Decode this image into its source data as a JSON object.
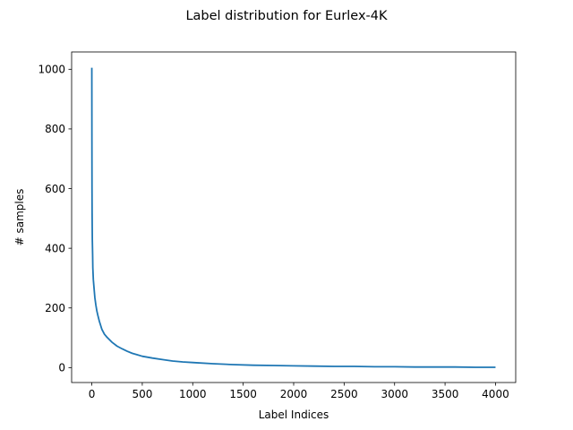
{
  "chart_data": {
    "type": "line",
    "title": "Label distribution for Eurlex-4K",
    "xlabel": "Label Indices",
    "ylabel": "# samples",
    "xlim": [
      -200,
      4200
    ],
    "ylim": [
      -50,
      1058
    ],
    "xticks": [
      0,
      500,
      1000,
      1500,
      2000,
      2500,
      3000,
      3500,
      4000
    ],
    "yticks": [
      0,
      200,
      400,
      600,
      800,
      1000
    ],
    "grid": false,
    "legend": "none",
    "line_color": "#1f77b4",
    "series": [
      {
        "x": [
          0,
          1,
          2,
          3,
          5,
          8,
          10,
          15,
          20,
          25,
          30,
          40,
          50,
          60,
          75,
          100,
          125,
          150,
          200,
          250,
          300,
          350,
          400,
          450,
          500,
          600,
          700,
          800,
          900,
          1000,
          1200,
          1400,
          1600,
          1800,
          2000,
          2200,
          2400,
          2600,
          2800,
          3000,
          3200,
          3400,
          3600,
          3800,
          3900,
          4000
        ],
        "y": [
          1005,
          760,
          600,
          520,
          430,
          380,
          335,
          295,
          275,
          255,
          235,
          210,
          190,
          175,
          155,
          128,
          112,
          102,
          85,
          72,
          63,
          55,
          48,
          43,
          38,
          32,
          27,
          22,
          19,
          17,
          13,
          10,
          8,
          7,
          6,
          5,
          4,
          4,
          3,
          3,
          2,
          2,
          2,
          1,
          1,
          1
        ]
      }
    ]
  }
}
